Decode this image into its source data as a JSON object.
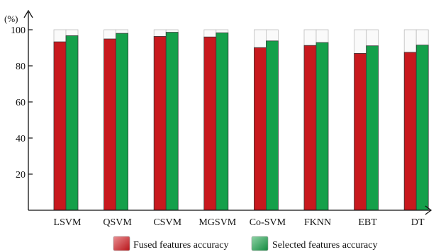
{
  "chart_data": {
    "type": "bar",
    "title": "",
    "xlabel": "",
    "ylabel": "(%)",
    "ylim": [
      0,
      100
    ],
    "yticks": [
      20,
      40,
      60,
      80,
      100
    ],
    "grid": false,
    "legend_position": "bottom",
    "categories": [
      "LSVM",
      "QSVM",
      "CSVM",
      "MGSVM",
      "Co-SVM",
      "FKNN",
      "EBT",
      "DT"
    ],
    "series": [
      {
        "name": "Fused features accuracy",
        "color": "#c8191e",
        "values": [
          93.3,
          94.9,
          96.3,
          96.0,
          90.1,
          91.3,
          86.9,
          87.5
        ]
      },
      {
        "name": "Selected features accuracy",
        "color": "#14a04a",
        "values": [
          96.7,
          98.0,
          98.6,
          98.3,
          93.8,
          92.9,
          91.1,
          91.5
        ]
      }
    ],
    "background_bar_value": 100
  }
}
